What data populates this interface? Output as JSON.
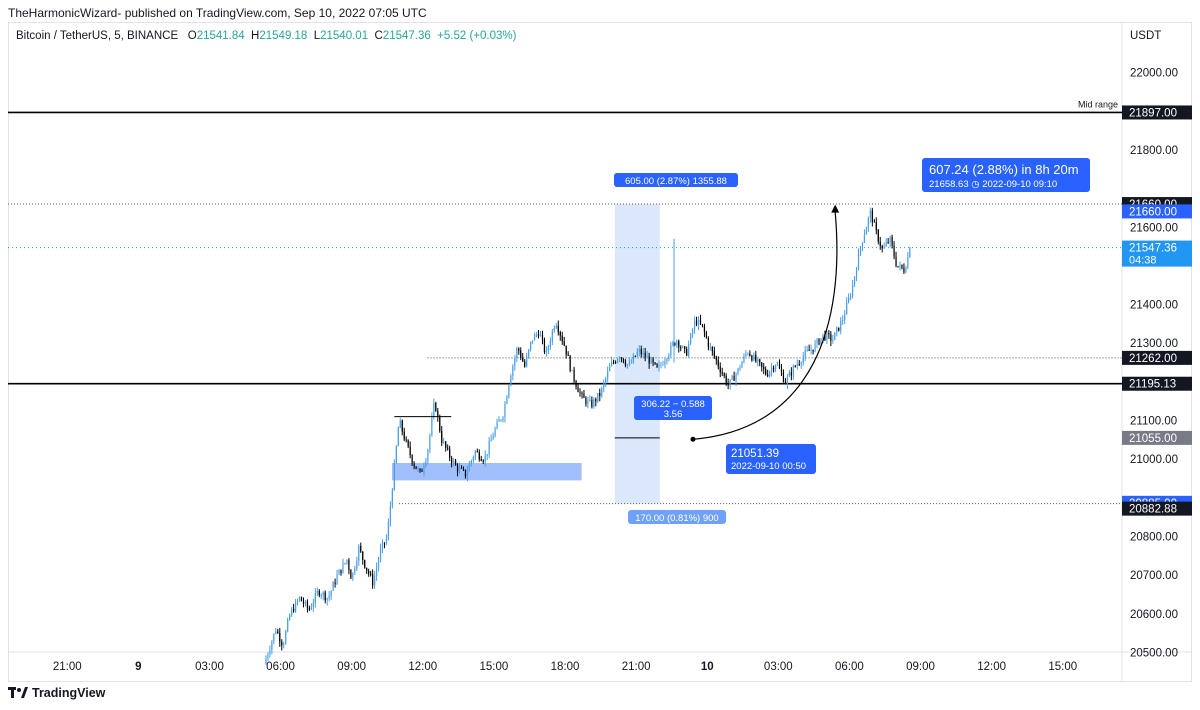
{
  "publish_line": "TheHarmonicWizard- published on TradingView.com, Sep 10, 2022 07:05 UTC",
  "legend": {
    "symbol": "Bitcoin / TetherUS, 5, BINANCE",
    "open_label": "O",
    "open": "21541.84",
    "high_label": "H",
    "high": "21549.18",
    "low_label": "L",
    "low": "21540.01",
    "close_label": "C",
    "close": "21547.36",
    "change": "+5.52 (+0.03%)"
  },
  "footer": {
    "brand": "TradingView",
    "logo_icon": "tradingview-logo-icon"
  },
  "colors": {
    "up": "#4a9fe6",
    "down": "#000000",
    "accent": "#2962ff",
    "range_fill": "#dbe7fb",
    "zone_fill": "#90b4fb",
    "current_price": "#2196f3"
  },
  "chart_data": {
    "type": "candlestick",
    "timeframe": "5",
    "y_currency": "USDT",
    "y_axis_ticks": [
      22000,
      21800,
      21600,
      21400,
      21300,
      21100,
      21000,
      20800,
      20700,
      20600,
      20500
    ],
    "y_axis_tick_labels": [
      "22000.00",
      "21800.00",
      "21600.00",
      "21400.00",
      "21300.00",
      "21100.00",
      "21000.00",
      "20800.00",
      "20700.00",
      "20600.00",
      "20500.00"
    ],
    "ylim": [
      20470,
      22100
    ],
    "x_axis_ticks": [
      {
        "t": -3,
        "label": "21:00",
        "bold": false
      },
      {
        "t": 0,
        "label": "9",
        "bold": true
      },
      {
        "t": 3,
        "label": "03:00",
        "bold": false
      },
      {
        "t": 6,
        "label": "06:00",
        "bold": false
      },
      {
        "t": 9,
        "label": "09:00",
        "bold": false
      },
      {
        "t": 12,
        "label": "12:00",
        "bold": false
      },
      {
        "t": 15,
        "label": "15:00",
        "bold": false
      },
      {
        "t": 18,
        "label": "18:00",
        "bold": false
      },
      {
        "t": 21,
        "label": "21:00",
        "bold": false
      },
      {
        "t": 24,
        "label": "10",
        "bold": true
      },
      {
        "t": 27,
        "label": "03:00",
        "bold": false
      },
      {
        "t": 30,
        "label": "06:00",
        "bold": false
      },
      {
        "t": 33,
        "label": "09:00",
        "bold": false
      },
      {
        "t": 36,
        "label": "12:00",
        "bold": false
      },
      {
        "t": 39,
        "label": "15:00",
        "bold": false
      }
    ],
    "x_unit": "hours since 2022-09-09 00:00 UTC",
    "xlim": [
      -5.5,
      41.5
    ],
    "price_path": [
      [
        5.3,
        20470
      ],
      [
        5.8,
        20560
      ],
      [
        6.1,
        20520
      ],
      [
        6.4,
        20600
      ],
      [
        6.8,
        20640
      ],
      [
        7.2,
        20610
      ],
      [
        7.6,
        20660
      ],
      [
        8.0,
        20640
      ],
      [
        8.4,
        20700
      ],
      [
        8.8,
        20740
      ],
      [
        9.0,
        20690
      ],
      [
        9.3,
        20770
      ],
      [
        9.6,
        20720
      ],
      [
        9.9,
        20680
      ],
      [
        10.2,
        20760
      ],
      [
        10.5,
        20800
      ],
      [
        10.7,
        20920
      ],
      [
        11.0,
        21100
      ],
      [
        11.3,
        21040
      ],
      [
        11.6,
        20990
      ],
      [
        11.9,
        20960
      ],
      [
        12.2,
        21020
      ],
      [
        12.5,
        21150
      ],
      [
        12.8,
        21050
      ],
      [
        13.1,
        21010
      ],
      [
        13.4,
        20980
      ],
      [
        13.8,
        20960
      ],
      [
        14.2,
        21020
      ],
      [
        14.6,
        21000
      ],
      [
        15.0,
        21070
      ],
      [
        15.4,
        21120
      ],
      [
        15.7,
        21220
      ],
      [
        16.0,
        21290
      ],
      [
        16.3,
        21240
      ],
      [
        16.6,
        21310
      ],
      [
        16.9,
        21330
      ],
      [
        17.2,
        21270
      ],
      [
        17.6,
        21360
      ],
      [
        18.0,
        21290
      ],
      [
        18.3,
        21220
      ],
      [
        18.7,
        21160
      ],
      [
        19.1,
        21140
      ],
      [
        19.5,
        21170
      ],
      [
        19.9,
        21240
      ],
      [
        20.3,
        21270
      ],
      [
        20.7,
        21240
      ],
      [
        21.1,
        21280
      ],
      [
        21.5,
        21260
      ],
      [
        21.9,
        21230
      ],
      [
        22.3,
        21270
      ],
      [
        22.7,
        21310
      ],
      [
        23.1,
        21270
      ],
      [
        23.5,
        21360
      ],
      [
        23.8,
        21340
      ],
      [
        24.1,
        21290
      ],
      [
        24.5,
        21240
      ],
      [
        24.9,
        21190
      ],
      [
        25.3,
        21230
      ],
      [
        25.7,
        21280
      ],
      [
        26.1,
        21250
      ],
      [
        26.5,
        21220
      ],
      [
        26.9,
        21250
      ],
      [
        27.3,
        21200
      ],
      [
        27.7,
        21240
      ],
      [
        28.1,
        21270
      ],
      [
        28.5,
        21290
      ],
      [
        28.9,
        21320
      ],
      [
        29.3,
        21310
      ],
      [
        29.7,
        21360
      ],
      [
        30.1,
        21440
      ],
      [
        30.5,
        21560
      ],
      [
        30.9,
        21640
      ],
      [
        31.1,
        21590
      ],
      [
        31.4,
        21540
      ],
      [
        31.7,
        21570
      ],
      [
        32.0,
        21500
      ],
      [
        32.3,
        21490
      ],
      [
        32.6,
        21547.36
      ]
    ],
    "horizontal_lines": [
      {
        "price": 21897,
        "label": "Mid range",
        "style": "solid-bold"
      },
      {
        "price": 21195.13,
        "style": "solid-bold"
      },
      {
        "price": 21660,
        "style": "dotted"
      },
      {
        "price": 21262,
        "style": "dotted"
      },
      {
        "price": 20885,
        "style": "dotted"
      },
      {
        "price": 21547.36,
        "style": "dotted-blue"
      }
    ],
    "price_scale_labels": [
      {
        "price": 21897,
        "text": "21897.00",
        "bg": "#131722"
      },
      {
        "price": 21660,
        "text": "21660.00",
        "bg": "#131722"
      },
      {
        "price": 21641,
        "text": "21660.00",
        "bg": "#2962ff"
      },
      {
        "price": 21547.36,
        "text": "21547.36",
        "sub": "04:38",
        "bg": "#2196f3"
      },
      {
        "price": 21262,
        "text": "21262.00",
        "bg": "#131722"
      },
      {
        "price": 21195.13,
        "text": "21195.13",
        "bg": "#131722"
      },
      {
        "price": 21055,
        "text": "21055.00",
        "bg": "#787b86"
      },
      {
        "price": 20887,
        "text": "20885.00",
        "bg": "#2962ff"
      },
      {
        "price": 20872,
        "text": "20882.88",
        "bg": "#131722"
      }
    ],
    "annotations": {
      "range_box": {
        "t0": 20.1,
        "t1": 22.0,
        "p_top": 21660,
        "p_bot": 20885,
        "top_label": "605.00 (2.87%) 1355.88",
        "bottom_label": "170.00 (0.81%) 900"
      },
      "ratio_label": {
        "line1": "306.22 − 0.588",
        "line2": "3.56"
      },
      "demand_zone": {
        "t0": 10.7,
        "t1": 18.7,
        "p_top": 20990,
        "p_bot": 20945
      },
      "arc_start": {
        "price": "21051.39",
        "time": "2022-09-10 00:50"
      },
      "arc_end": {
        "summary": "607.24 (2.88%) in 8h 20m",
        "detail": "21658.63 ◷ 2022-09-10  09:10"
      }
    }
  }
}
